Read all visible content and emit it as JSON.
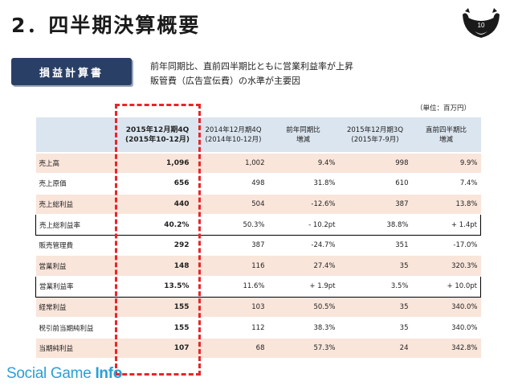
{
  "slide": {
    "title": "2．四半期決算概要",
    "page_number": "10"
  },
  "section": {
    "label": "損益計算書",
    "summary_lines": [
      "前年同期比、直前四半期比ともに営業利益率が上昇",
      "販管費（広告宣伝費）の水準が主要因"
    ],
    "unit": "（単位：百万円）"
  },
  "table": {
    "headers": [
      {
        "line1": "",
        "line2": ""
      },
      {
        "line1": "2015年12月期4Q",
        "line2": "(2015年10-12月)"
      },
      {
        "line1": "2014年12月期4Q",
        "line2": "(2014年10-12月)"
      },
      {
        "line1": "前年同期比",
        "line2": "増減"
      },
      {
        "line1": "2015年12月期3Q",
        "line2": "(2015年7-9月)"
      },
      {
        "line1": "直前四半期比",
        "line2": "増減"
      }
    ],
    "rows": [
      {
        "label": "売上高",
        "cells": [
          "1,096",
          "1,002",
          "9.4%",
          "998",
          "9.9%"
        ]
      },
      {
        "label": "売上原価",
        "cells": [
          "656",
          "498",
          "31.8%",
          "610",
          "7.4%"
        ]
      },
      {
        "label": "売上総利益",
        "cells": [
          "440",
          "504",
          "-12.6%",
          "387",
          "13.8%"
        ]
      },
      {
        "label": "売上総利益率",
        "cells": [
          "40.2%",
          "50.3%",
          "- 10.2pt",
          "38.8%",
          "+ 1.4pt"
        ]
      },
      {
        "label": "販売管理費",
        "cells": [
          "292",
          "387",
          "-24.7%",
          "351",
          "-17.0%"
        ]
      },
      {
        "label": "営業利益",
        "cells": [
          "148",
          "116",
          "27.4%",
          "35",
          "320.3%"
        ]
      },
      {
        "label": "営業利益率",
        "cells": [
          "13.5%",
          "11.6%",
          "+ 1.9pt",
          "3.5%",
          "+ 10.0pt"
        ]
      },
      {
        "label": "経常利益",
        "cells": [
          "155",
          "103",
          "50.5%",
          "35",
          "340.0%"
        ]
      },
      {
        "label": "税引前当期純利益",
        "cells": [
          "155",
          "112",
          "38.3%",
          "35",
          "340.0%"
        ]
      },
      {
        "label": "当期純利益",
        "cells": [
          "107",
          "68",
          "57.3%",
          "24",
          "342.8%"
        ]
      }
    ]
  },
  "watermark": {
    "text_regular": "Social Game ",
    "text_bold": "Info"
  },
  "colors": {
    "accent_red": "#e8252a",
    "label_navy": "#2a3f66",
    "header_blue": "#dbe5ef",
    "row_peach": "#f9e5da",
    "watermark_blue": "#2a9fd6"
  },
  "icons": {
    "page_badge": "boat-icon"
  }
}
